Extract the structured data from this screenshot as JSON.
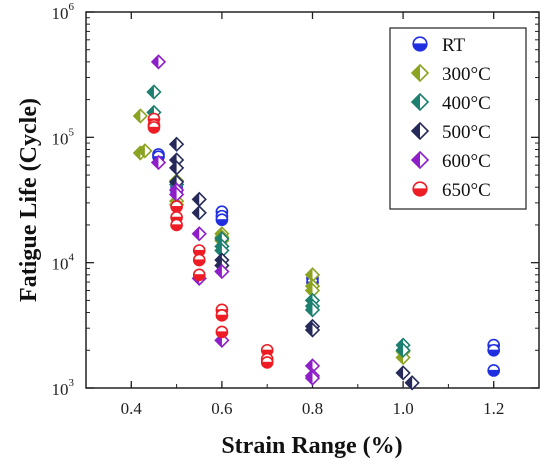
{
  "chart_data": {
    "type": "scatter",
    "title": "",
    "xlabel": "Strain Range (%)",
    "ylabel": "Fatigue Life (Cycle)",
    "xlim": [
      0.3,
      1.3
    ],
    "ylim": [
      1000,
      1000000
    ],
    "yscale": "log",
    "x_ticks": [
      "0.4",
      "0.6",
      "0.8",
      "1.0",
      "1.2"
    ],
    "y_ticks": [
      {
        "base": "10",
        "exp": "3"
      },
      {
        "base": "10",
        "exp": "4"
      },
      {
        "base": "10",
        "exp": "5"
      },
      {
        "base": "10",
        "exp": "6"
      }
    ],
    "grid": false,
    "legend_position": "top-right",
    "series": [
      {
        "name": "RT",
        "marker": "circle-half",
        "color": "#1f2fe0",
        "points": [
          [
            0.46,
            73000
          ],
          [
            0.46,
            70000
          ],
          [
            0.5,
            40000
          ],
          [
            0.5,
            37000
          ],
          [
            0.6,
            25500
          ],
          [
            0.6,
            23500
          ],
          [
            0.6,
            22000
          ],
          [
            0.8,
            7500
          ],
          [
            0.8,
            7000
          ],
          [
            1.2,
            2200
          ],
          [
            1.2,
            2000
          ],
          [
            1.2,
            1380
          ]
        ]
      },
      {
        "name": "300°C",
        "marker": "diamond-half",
        "color": "#8aa321",
        "points": [
          [
            0.42,
            148000
          ],
          [
            0.42,
            75000
          ],
          [
            0.43,
            78000
          ],
          [
            0.5,
            45000
          ],
          [
            0.5,
            31000
          ],
          [
            0.5,
            29000
          ],
          [
            0.6,
            17000
          ],
          [
            0.6,
            16000
          ],
          [
            0.6,
            15000
          ],
          [
            0.8,
            8000
          ],
          [
            0.8,
            6500
          ],
          [
            0.8,
            6000
          ],
          [
            1.0,
            1950
          ],
          [
            1.0,
            1750
          ]
        ]
      },
      {
        "name": "400°C",
        "marker": "diamond-half",
        "color": "#1d7f6e",
        "points": [
          [
            0.45,
            230000
          ],
          [
            0.45,
            158000
          ],
          [
            0.5,
            42000
          ],
          [
            0.6,
            15500
          ],
          [
            0.6,
            13500
          ],
          [
            0.6,
            12500
          ],
          [
            0.8,
            5000
          ],
          [
            0.8,
            4500
          ],
          [
            0.8,
            4200
          ],
          [
            1.0,
            2200
          ],
          [
            1.0,
            2000
          ]
        ]
      },
      {
        "name": "500°C",
        "marker": "diamond-half",
        "color": "#252a5a",
        "points": [
          [
            0.5,
            88000
          ],
          [
            0.5,
            66000
          ],
          [
            0.5,
            57000
          ],
          [
            0.5,
            44000
          ],
          [
            0.55,
            32000
          ],
          [
            0.55,
            25000
          ],
          [
            0.6,
            10500
          ],
          [
            0.6,
            9500
          ],
          [
            0.8,
            3100
          ],
          [
            0.8,
            2900
          ],
          [
            1.0,
            1320
          ],
          [
            1.02,
            1100
          ]
        ]
      },
      {
        "name": "600°C",
        "marker": "diamond-half",
        "color": "#8e1fc8",
        "points": [
          [
            0.46,
            400000
          ],
          [
            0.46,
            63000
          ],
          [
            0.5,
            38000
          ],
          [
            0.5,
            35000
          ],
          [
            0.55,
            17000
          ],
          [
            0.55,
            7500
          ],
          [
            0.6,
            8500
          ],
          [
            0.6,
            2400
          ],
          [
            0.8,
            1500
          ],
          [
            0.8,
            1250
          ],
          [
            0.8,
            1200
          ]
        ]
      },
      {
        "name": "650°C",
        "marker": "circle-half",
        "color": "#ee1c24",
        "points": [
          [
            0.45,
            140000
          ],
          [
            0.45,
            125000
          ],
          [
            0.45,
            120000
          ],
          [
            0.5,
            28000
          ],
          [
            0.5,
            23000
          ],
          [
            0.5,
            20000
          ],
          [
            0.55,
            12500
          ],
          [
            0.55,
            10500
          ],
          [
            0.55,
            8000
          ],
          [
            0.6,
            4200
          ],
          [
            0.6,
            3800
          ],
          [
            0.6,
            2800
          ],
          [
            0.7,
            2000
          ],
          [
            0.7,
            1700
          ],
          [
            0.7,
            1600
          ]
        ]
      }
    ]
  }
}
